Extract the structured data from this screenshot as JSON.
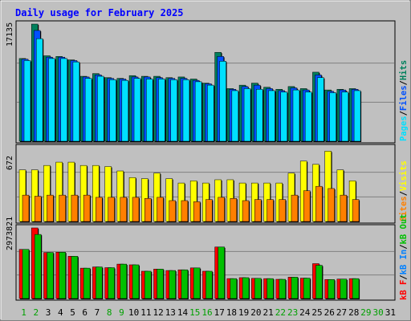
{
  "title": "Daily usage for February 2025",
  "colors": {
    "frame_bg": "#c0c0c0",
    "plot_bg": "#c0c0c0",
    "title": "#0000ff",
    "day_normal": "#000000",
    "day_weekend": "#00a000",
    "hits": "#00805c",
    "files": "#0050ff",
    "pages": "#00e0ff",
    "visits": "#ffff00",
    "sites": "#ff8000",
    "kb_f": "#ff0000",
    "kb_in": "#0080ff",
    "kb_out": "#00c000"
  },
  "legend_top": {
    "pages": "Pages",
    "sep1": "/",
    "files": "Files",
    "sep2": "/",
    "hits": "Hits"
  },
  "legend_mid": {
    "sites": "Sites",
    "sep1": "/",
    "visits": "Visits"
  },
  "legend_bot": {
    "kb_f": "kB F",
    "sep1": "/",
    "kb_in": "kB In",
    "sep2": "/",
    "kb_out": "kB Out"
  },
  "chart_data": {
    "type": "bar",
    "title": "Daily usage for February 2025",
    "categories": [
      "1",
      "2",
      "3",
      "4",
      "5",
      "6",
      "7",
      "8",
      "9",
      "10",
      "11",
      "12",
      "13",
      "14",
      "15",
      "16",
      "17",
      "18",
      "19",
      "20",
      "21",
      "22",
      "23",
      "24",
      "25",
      "26",
      "27",
      "28",
      "29",
      "30",
      "31"
    ],
    "weekend_days": [
      "1",
      "2",
      "8",
      "9",
      "15",
      "16",
      "22",
      "23",
      "29",
      "30"
    ],
    "panels": [
      {
        "name": "hits-files-pages",
        "ymax_label": "17135",
        "ymax": 17135,
        "series": [
          {
            "name": "Hits",
            "values": [
              12100,
              17135,
              12500,
              12400,
              11900,
              9500,
              9900,
              9300,
              9200,
              9600,
              9500,
              9500,
              9300,
              9400,
              9100,
              8500,
              13000,
              7700,
              8200,
              8500,
              7900,
              7600,
              8000,
              7700,
              10100,
              7500,
              7600,
              7700,
              null,
              null,
              null
            ]
          },
          {
            "name": "Files",
            "values": [
              12000,
              16200,
              12300,
              12300,
              11800,
              9400,
              9700,
              9200,
              9100,
              9400,
              9400,
              9300,
              9200,
              9200,
              8900,
              8400,
              12400,
              7600,
              8000,
              8200,
              7700,
              7400,
              7800,
              7500,
              9700,
              7300,
              7500,
              7600,
              null,
              null,
              null
            ]
          },
          {
            "name": "Pages",
            "values": [
              11800,
              15000,
              12100,
              12100,
              11600,
              9200,
              9500,
              9000,
              8900,
              9200,
              9100,
              9100,
              9000,
              9000,
              8700,
              8200,
              11700,
              7400,
              7700,
              7600,
              7400,
              7200,
              7500,
              7200,
              9300,
              7100,
              7200,
              7400,
              null,
              null,
              null
            ]
          }
        ]
      },
      {
        "name": "visits-sites",
        "ymax_label": "672",
        "ymax": 672,
        "series": [
          {
            "name": "Visits",
            "values": [
              470,
              470,
              510,
              540,
              540,
              510,
              510,
              500,
              460,
              400,
              390,
              440,
              390,
              350,
              370,
              350,
              380,
              380,
              350,
              350,
              350,
              350,
              440,
              550,
              520,
              640,
              470,
              370,
              null,
              null,
              null
            ]
          },
          {
            "name": "Sites",
            "values": [
              240,
              230,
              240,
              240,
              240,
              240,
              220,
              220,
              220,
              220,
              210,
              220,
              190,
              190,
              180,
              200,
              220,
              210,
              190,
              200,
              200,
              200,
              240,
              280,
              320,
              300,
              240,
              200,
              null,
              null,
              null
            ]
          }
        ]
      },
      {
        "name": "kb-f-in-out",
        "ymax_label": "2973821",
        "ymax": 2973821,
        "series": [
          {
            "name": "kB F",
            "values": [
              2070000,
              2973821,
              1940000,
              1950000,
              1780000,
              1280000,
              1330000,
              1300000,
              1450000,
              1420000,
              1150000,
              1240000,
              1180000,
              1210000,
              1290000,
              1150000,
              2170000,
              840000,
              880000,
              850000,
              840000,
              810000,
              900000,
              860000,
              1470000,
              800000,
              820000,
              840000,
              null,
              null,
              null
            ]
          },
          {
            "name": "kB Out",
            "values": [
              2070000,
              2700000,
              1940000,
              1950000,
              1780000,
              1280000,
              1330000,
              1300000,
              1450000,
              1420000,
              1150000,
              1240000,
              1180000,
              1210000,
              1290000,
              1150000,
              2170000,
              840000,
              880000,
              850000,
              840000,
              810000,
              900000,
              860000,
              1400000,
              800000,
              820000,
              840000,
              null,
              null,
              null
            ]
          }
        ]
      }
    ]
  }
}
